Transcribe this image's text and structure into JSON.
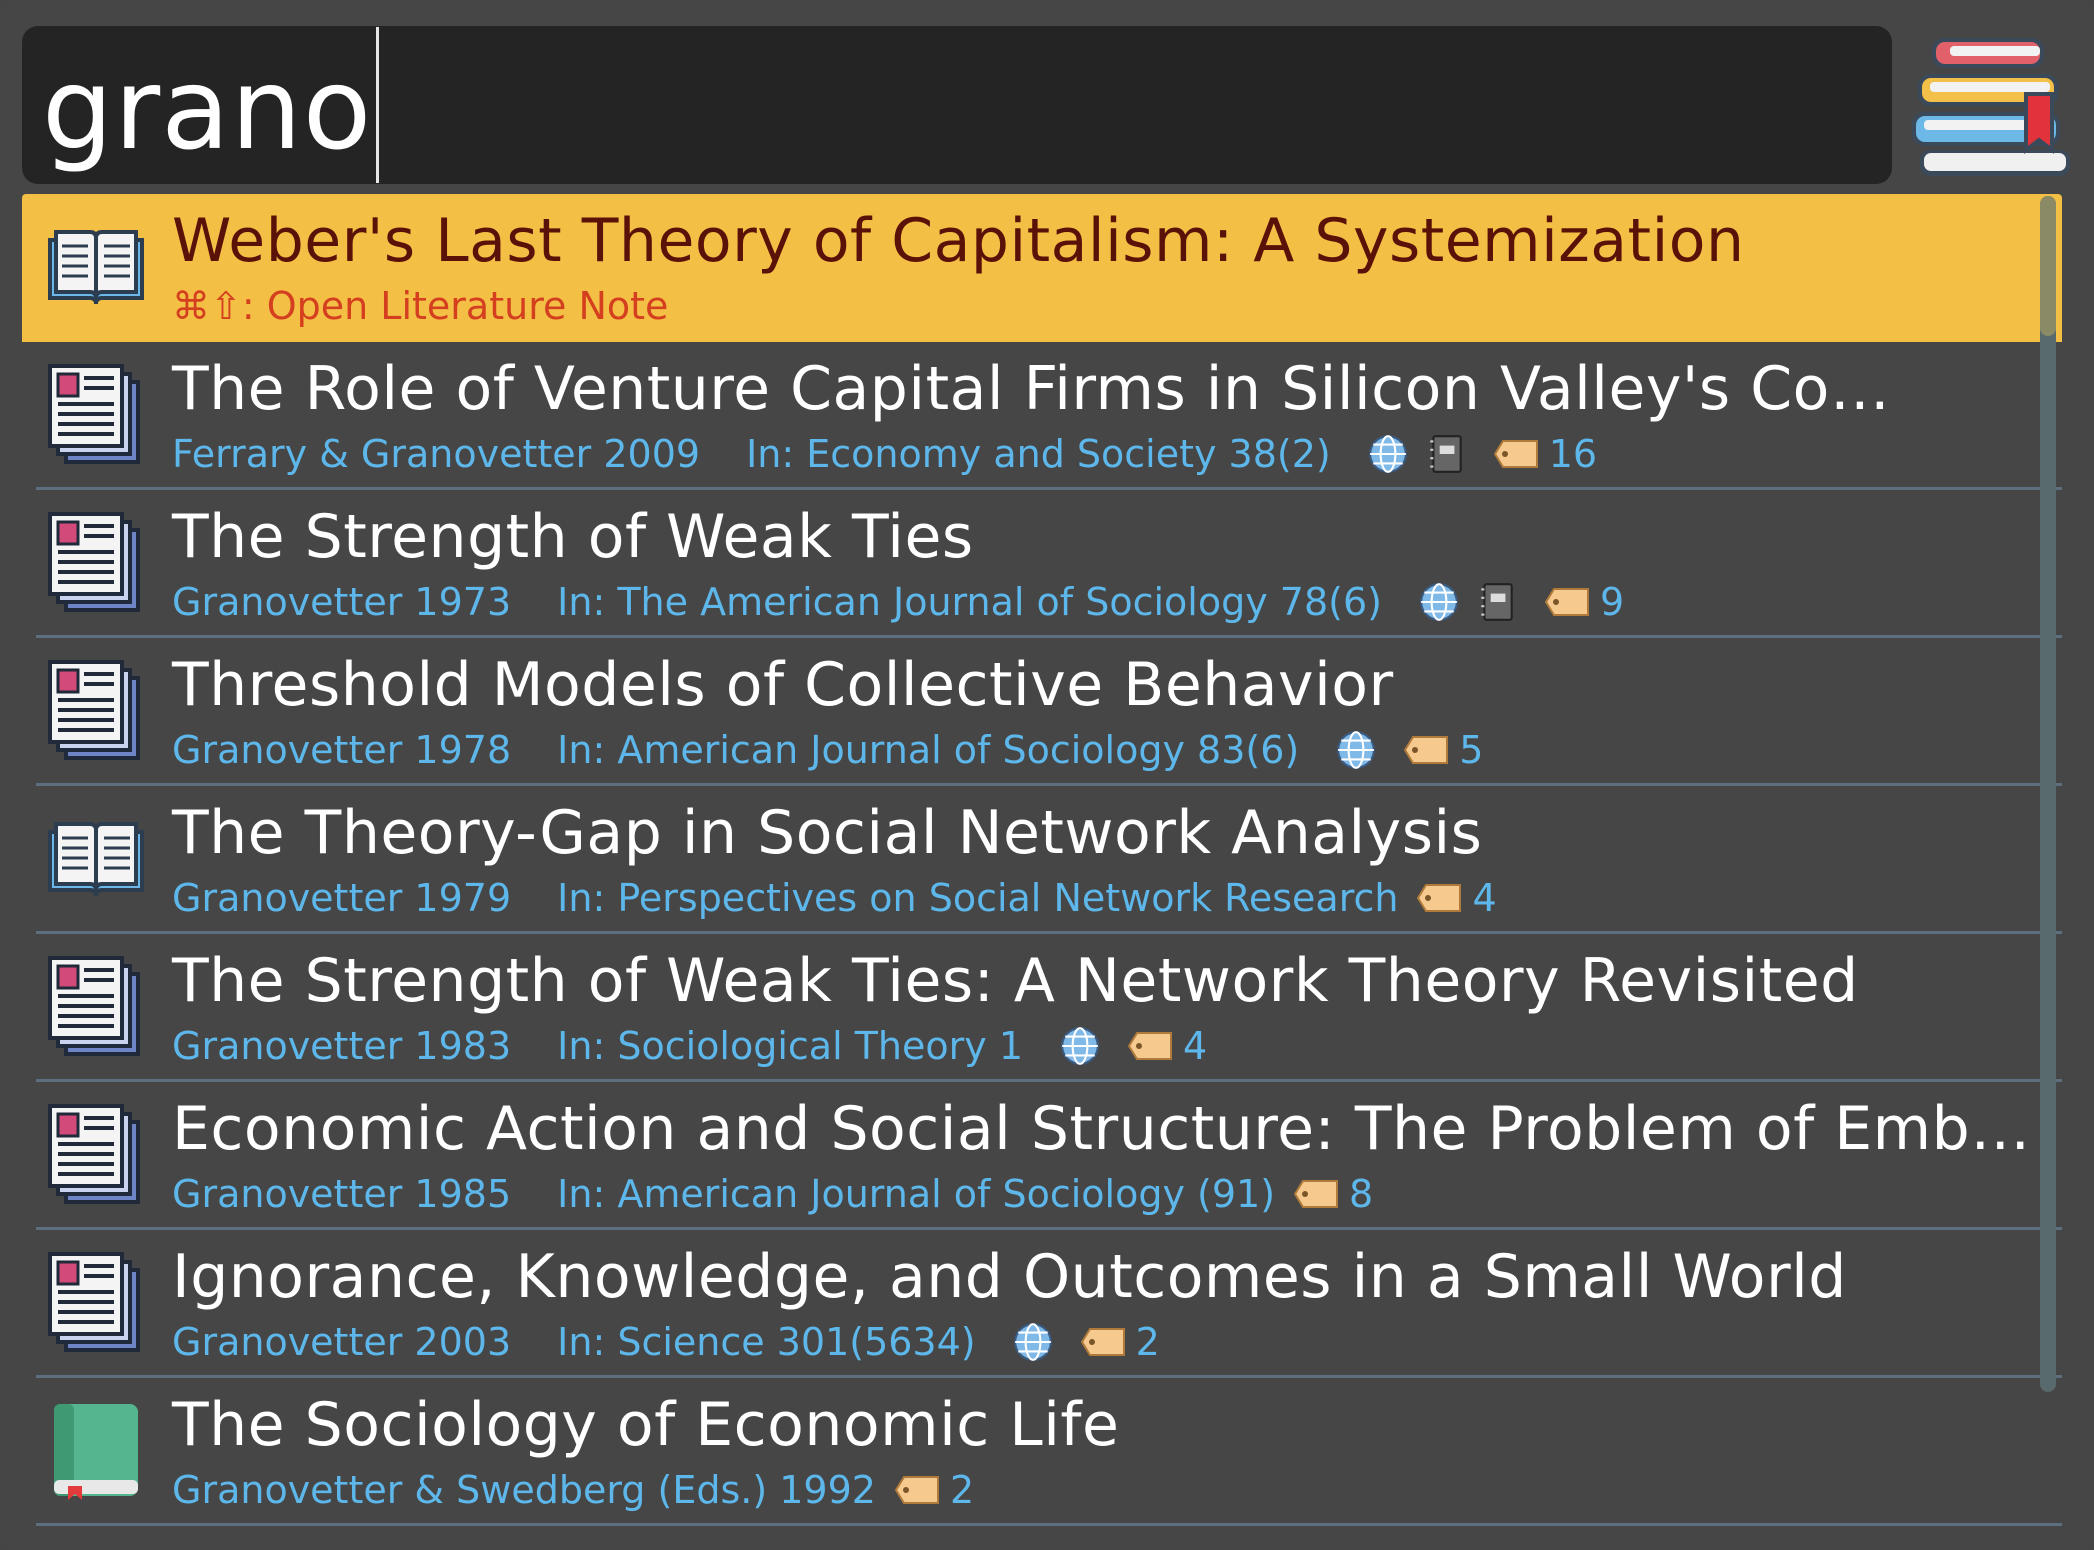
{
  "search": {
    "query": "grano"
  },
  "app": {
    "icon": "books-stack-icon"
  },
  "results": [
    {
      "icon": "open-book-icon",
      "title": "Weber's Last Theory of Capitalism: A Systemization",
      "subtitle": "⌘⇧: Open Literature Note",
      "selected": true
    },
    {
      "icon": "newspaper-icon",
      "title": "The Role of Venture Capital Firms in Silicon Valley's Co…",
      "authors": "Ferrary & Granovetter 2009",
      "in": "In: Economy and Society 38(2)",
      "globe": true,
      "notebook": true,
      "tag_count": "16"
    },
    {
      "icon": "newspaper-icon",
      "title": "The Strength of Weak Ties",
      "authors": "Granovetter 1973",
      "in": "In: The American Journal of Sociology 78(6)",
      "globe": true,
      "notebook": true,
      "tag_count": "9"
    },
    {
      "icon": "newspaper-icon",
      "title": "Threshold Models of Collective Behavior",
      "authors": "Granovetter 1978",
      "in": "In: American Journal of Sociology 83(6)",
      "globe": true,
      "notebook": false,
      "tag_count": "5"
    },
    {
      "icon": "open-book-icon",
      "title": "The Theory-Gap in Social Network Analysis",
      "authors": "Granovetter 1979",
      "in": "In: Perspectives on Social Network Research",
      "globe": false,
      "notebook": false,
      "tag_count": "4"
    },
    {
      "icon": "newspaper-icon",
      "title": "The Strength of Weak Ties: A Network Theory Revisited",
      "authors": "Granovetter 1983",
      "in": "In: Sociological Theory 1",
      "globe": true,
      "notebook": false,
      "tag_count": "4"
    },
    {
      "icon": "newspaper-icon",
      "title": "Economic Action and Social Structure: The Problem of Emb…",
      "authors": "Granovetter 1985",
      "in": "In: American Journal of Sociology (91)",
      "globe": false,
      "notebook": false,
      "tag_count": "8"
    },
    {
      "icon": "newspaper-icon",
      "title": "Ignorance, Knowledge, and Outcomes in a Small World",
      "authors": "Granovetter 2003",
      "in": "In: Science 301(5634)",
      "globe": true,
      "notebook": false,
      "tag_count": "2"
    },
    {
      "icon": "green-book-icon",
      "title": "The Sociology of Economic Life",
      "authors": "Granovetter & Swedberg (Eds.) 1992",
      "in": "",
      "globe": false,
      "notebook": false,
      "tag_count": "2"
    }
  ],
  "colors": {
    "selected_bg": "#f4bf45",
    "link_blue": "#5db7ea",
    "selected_title": "#5a1208",
    "selected_sub": "#d4401f"
  }
}
